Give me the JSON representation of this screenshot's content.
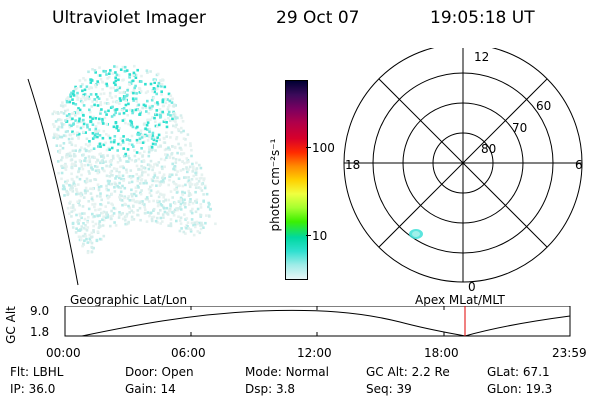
{
  "header": {
    "title": "Ultraviolet Imager",
    "date": "29 Oct 07",
    "time": "19:05:18 UT"
  },
  "colorbar": {
    "label": "photon cm⁻²s⁻¹",
    "ticks": [
      "100",
      "10"
    ],
    "colors": [
      "#000033",
      "#3b0a5a",
      "#7a0060",
      "#b0004a",
      "#d8002a",
      "#ff2a00",
      "#ff8a00",
      "#ffd000",
      "#f0ff40",
      "#a6ff30",
      "#3cf000",
      "#00d8a0",
      "#30e0d0",
      "#a0ece8",
      "#e8f6f6"
    ]
  },
  "polar": {
    "lat_labels": [
      "60",
      "70",
      "80"
    ],
    "mlt_labels": {
      "top": "12",
      "left": "18",
      "right": "6",
      "bottom": "0"
    }
  },
  "timeline": {
    "ylabel": "GC Alt",
    "yticks": [
      "9.0",
      "1.8"
    ],
    "left_caption": "Geographic Lat/Lon",
    "right_caption": "Apex MLat/MLT",
    "xticks": [
      "00:00",
      "06:00",
      "12:00",
      "18:00",
      "23:59"
    ],
    "marker_time": "19:05"
  },
  "meta": {
    "row1": [
      {
        "label": "Flt:",
        "value": "LBHL"
      },
      {
        "label": "Door:",
        "value": "Open"
      },
      {
        "label": "Mode:",
        "value": "Normal"
      },
      {
        "label": "GC Alt:",
        "value": "2.2 Re"
      },
      {
        "label": "GLat:",
        "value": "67.1"
      }
    ],
    "row2": [
      {
        "label": "IP:",
        "value": "36.0"
      },
      {
        "label": "Gain:",
        "value": "14"
      },
      {
        "label": "Dsp:",
        "value": "3.8"
      },
      {
        "label": "Seq:",
        "value": "39"
      },
      {
        "label": "GLon:",
        "value": "19.3"
      }
    ]
  }
}
